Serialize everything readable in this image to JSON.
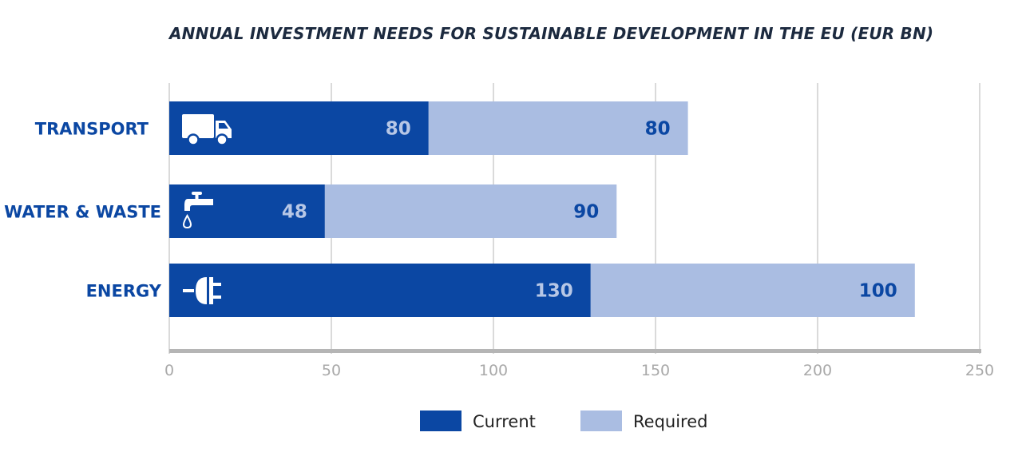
{
  "chart_data": {
    "type": "bar",
    "orientation": "horizontal",
    "stacked": true,
    "title": "ANNUAL INVESTMENT NEEDS FOR SUSTAINABLE DEVELOPMENT IN THE EU (EUR BN)",
    "categories": [
      "TRANSPORT",
      "WATER & WASTE",
      "ENERGY"
    ],
    "category_icons": [
      "truck-icon",
      "water-tap-icon",
      "electric-plug-icon"
    ],
    "series": [
      {
        "name": "Current",
        "values": [
          80,
          48,
          130
        ],
        "color": "#0b47a3",
        "label_color": "#b7c7e6"
      },
      {
        "name": "Required",
        "values": [
          80,
          90,
          100
        ],
        "color": "#aabde2",
        "label_color": "#0b47a3"
      }
    ],
    "xlim": [
      0,
      250
    ],
    "xticks": [
      0,
      50,
      100,
      150,
      200,
      250
    ],
    "grid": true,
    "legend_position": "bottom-center",
    "label_color": "#0b47a3"
  }
}
